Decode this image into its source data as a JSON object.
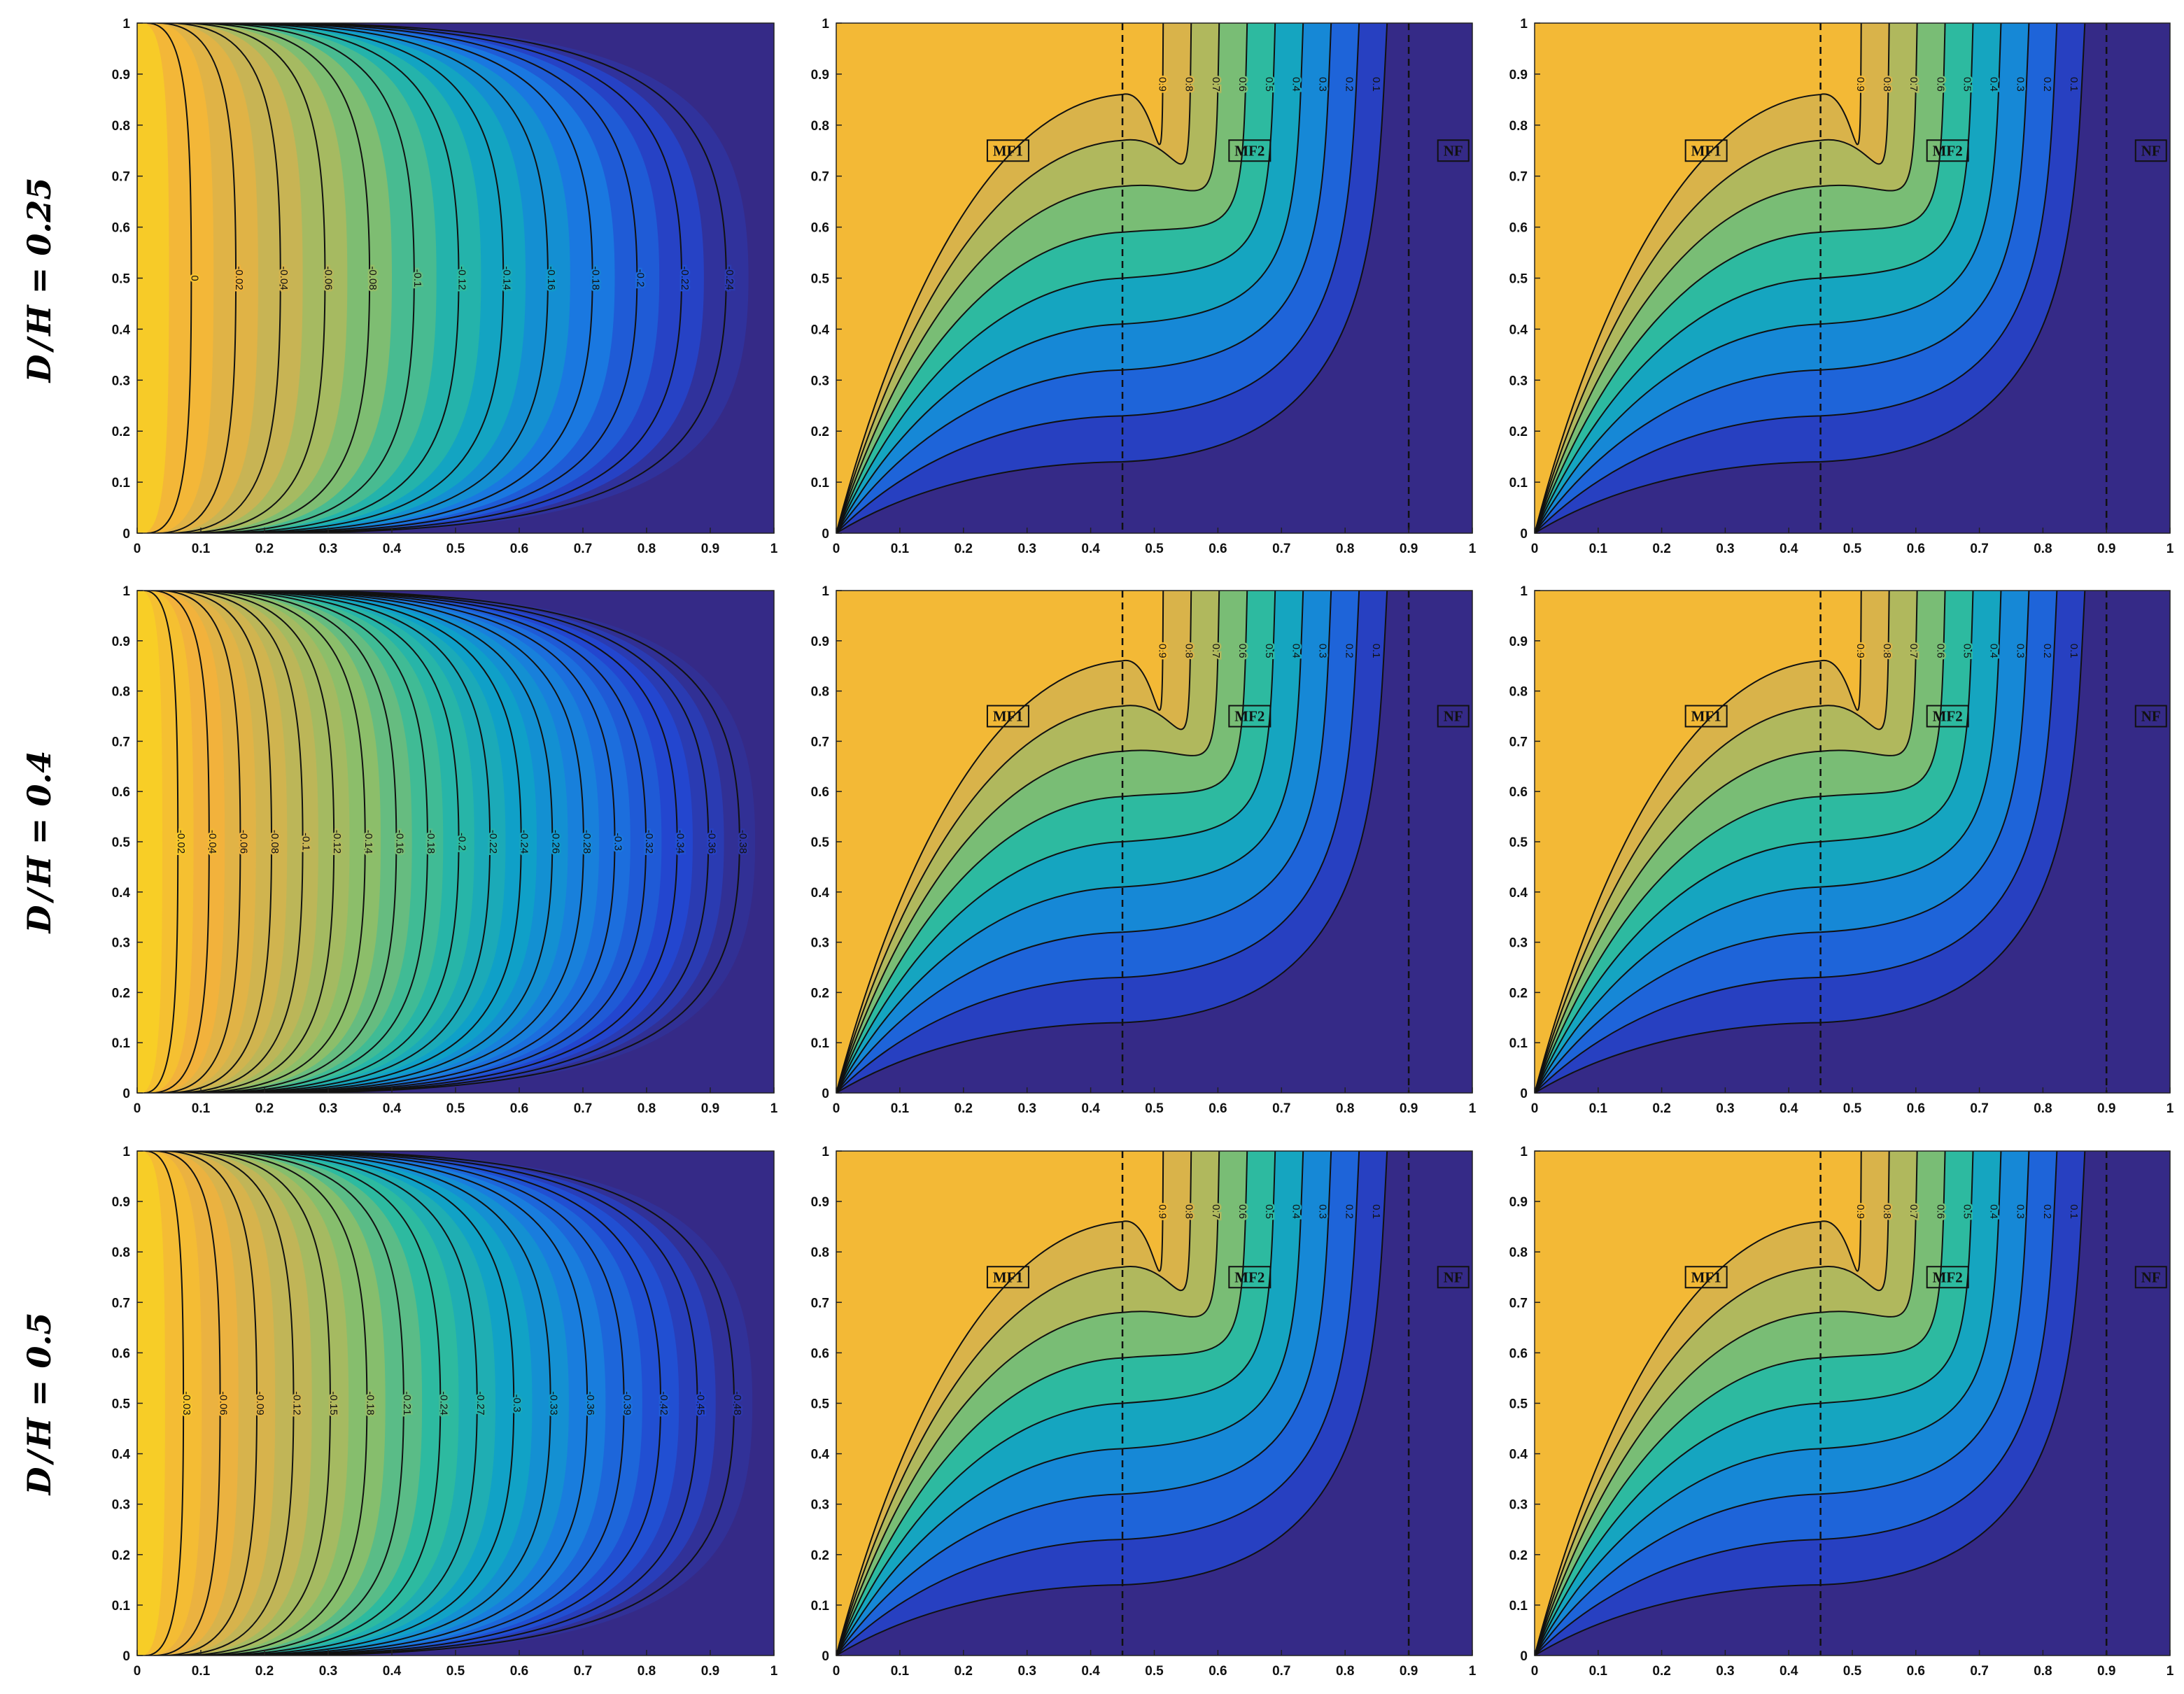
{
  "figure": {
    "row_labels": [
      {
        "symbol": "D",
        "rest": "H = 0.25"
      },
      {
        "symbol": "D",
        "rest": "H = 0.4"
      },
      {
        "symbol": "D",
        "rest": "H = 0.5"
      }
    ],
    "colormap": [
      "#352a87",
      "#2346cf",
      "#1a78e0",
      "#0fa0c8",
      "#2dbaa0",
      "#8cbe6a",
      "#c8b454",
      "#f2b23c",
      "#f9d520"
    ]
  },
  "chart_data": [
    {
      "type": "contour",
      "row": 0,
      "col": 0,
      "field": "stream",
      "xlim": [
        0,
        1
      ],
      "ylim": [
        0,
        1
      ],
      "x_ticks": [
        "0",
        "0.1",
        "0.2",
        "0.3",
        "0.4",
        "0.5",
        "0.6",
        "0.7",
        "0.8",
        "0.9",
        "1"
      ],
      "y_ticks": [
        "0",
        "0.1",
        "0.2",
        "0.3",
        "0.4",
        "0.5",
        "0.6",
        "0.7",
        "0.8",
        "0.9",
        "1"
      ],
      "extreme": -0.24,
      "levels": [
        "0",
        "-0.02",
        "-0.04",
        "-0.06",
        "-0.08",
        "-0.1",
        "-0.12",
        "-0.14",
        "-0.16",
        "-0.18",
        "-0.2",
        "-0.22",
        "-0.24"
      ]
    },
    {
      "type": "contour",
      "row": 0,
      "col": 1,
      "field": "temperature",
      "xlim": [
        0,
        1
      ],
      "ylim": [
        0,
        1
      ],
      "x_ticks": [
        "0",
        "0.1",
        "0.2",
        "0.3",
        "0.4",
        "0.5",
        "0.6",
        "0.7",
        "0.8",
        "0.9",
        "1"
      ],
      "y_ticks": [
        "0",
        "0.1",
        "0.2",
        "0.3",
        "0.4",
        "0.5",
        "0.6",
        "0.7",
        "0.8",
        "0.9",
        "1"
      ],
      "levels": [
        "0.9",
        "0.8",
        "0.7",
        "0.6",
        "0.5",
        "0.4",
        "0.3",
        "0.2",
        "0.1"
      ],
      "interfaces": [
        0.45,
        0.9
      ],
      "zones": [
        "MF1",
        "MF2",
        "NF"
      ]
    },
    {
      "type": "contour",
      "row": 0,
      "col": 2,
      "field": "temperature",
      "xlim": [
        0,
        1
      ],
      "ylim": [
        0,
        1
      ],
      "x_ticks": [
        "0",
        "0.1",
        "0.2",
        "0.3",
        "0.4",
        "0.5",
        "0.6",
        "0.7",
        "0.8",
        "0.9",
        "1"
      ],
      "y_ticks": [
        "0",
        "0.1",
        "0.2",
        "0.3",
        "0.4",
        "0.5",
        "0.6",
        "0.7",
        "0.8",
        "0.9",
        "1"
      ],
      "levels": [
        "0.9",
        "0.8",
        "0.7",
        "0.6",
        "0.5",
        "0.4",
        "0.3",
        "0.2",
        "0.1"
      ],
      "interfaces": [
        0.45,
        0.9
      ],
      "zones": [
        "MF1",
        "MF2",
        "NF"
      ]
    },
    {
      "type": "contour",
      "row": 1,
      "col": 0,
      "field": "stream",
      "xlim": [
        0,
        1
      ],
      "ylim": [
        0,
        1
      ],
      "x_ticks": [
        "0",
        "0.1",
        "0.2",
        "0.3",
        "0.4",
        "0.5",
        "0.6",
        "0.7",
        "0.8",
        "0.9",
        "1"
      ],
      "y_ticks": [
        "0",
        "0.1",
        "0.2",
        "0.3",
        "0.4",
        "0.5",
        "0.6",
        "0.7",
        "0.8",
        "0.9",
        "1"
      ],
      "extreme": -0.38,
      "levels": [
        "-0.02",
        "-0.04",
        "-0.06",
        "-0.08",
        "-0.1",
        "-0.12",
        "-0.14",
        "-0.16",
        "-0.18",
        "-0.2",
        "-0.22",
        "-0.24",
        "-0.26",
        "-0.28",
        "-0.3",
        "-0.32",
        "-0.34",
        "-0.36",
        "-0.38"
      ]
    },
    {
      "type": "contour",
      "row": 1,
      "col": 1,
      "field": "temperature",
      "xlim": [
        0,
        1
      ],
      "ylim": [
        0,
        1
      ],
      "x_ticks": [
        "0",
        "0.1",
        "0.2",
        "0.3",
        "0.4",
        "0.5",
        "0.6",
        "0.7",
        "0.8",
        "0.9",
        "1"
      ],
      "y_ticks": [
        "0",
        "0.1",
        "0.2",
        "0.3",
        "0.4",
        "0.5",
        "0.6",
        "0.7",
        "0.8",
        "0.9",
        "1"
      ],
      "levels": [
        "0.9",
        "0.8",
        "0.7",
        "0.6",
        "0.5",
        "0.4",
        "0.3",
        "0.2",
        "0.1"
      ],
      "interfaces": [
        0.45,
        0.9
      ],
      "zones": [
        "MF1",
        "MF2",
        "NF"
      ]
    },
    {
      "type": "contour",
      "row": 1,
      "col": 2,
      "field": "temperature",
      "xlim": [
        0,
        1
      ],
      "ylim": [
        0,
        1
      ],
      "x_ticks": [
        "0",
        "0.1",
        "0.2",
        "0.3",
        "0.4",
        "0.5",
        "0.6",
        "0.7",
        "0.8",
        "0.9",
        "1"
      ],
      "y_ticks": [
        "0",
        "0.1",
        "0.2",
        "0.3",
        "0.4",
        "0.5",
        "0.6",
        "0.7",
        "0.8",
        "0.9",
        "1"
      ],
      "levels": [
        "0.9",
        "0.8",
        "0.7",
        "0.6",
        "0.5",
        "0.4",
        "0.3",
        "0.2",
        "0.1"
      ],
      "interfaces": [
        0.45,
        0.9
      ],
      "zones": [
        "MF1",
        "MF2",
        "NF"
      ]
    },
    {
      "type": "contour",
      "row": 2,
      "col": 0,
      "field": "stream",
      "xlim": [
        0,
        1
      ],
      "ylim": [
        0,
        1
      ],
      "x_ticks": [
        "0",
        "0.1",
        "0.2",
        "0.3",
        "0.4",
        "0.5",
        "0.6",
        "0.7",
        "0.8",
        "0.9",
        "1"
      ],
      "y_ticks": [
        "0",
        "0.1",
        "0.2",
        "0.3",
        "0.4",
        "0.5",
        "0.6",
        "0.7",
        "0.8",
        "0.9",
        "1"
      ],
      "extreme": -0.48,
      "levels": [
        "-0.03",
        "-0.06",
        "-0.09",
        "-0.12",
        "-0.15",
        "-0.18",
        "-0.21",
        "-0.24",
        "-0.27",
        "-0.3",
        "-0.33",
        "-0.36",
        "-0.39",
        "-0.42",
        "-0.45",
        "-0.48"
      ]
    },
    {
      "type": "contour",
      "row": 2,
      "col": 1,
      "field": "temperature",
      "xlim": [
        0,
        1
      ],
      "ylim": [
        0,
        1
      ],
      "x_ticks": [
        "0",
        "0.1",
        "0.2",
        "0.3",
        "0.4",
        "0.5",
        "0.6",
        "0.7",
        "0.8",
        "0.9",
        "1"
      ],
      "y_ticks": [
        "0",
        "0.1",
        "0.2",
        "0.3",
        "0.4",
        "0.5",
        "0.6",
        "0.7",
        "0.8",
        "0.9",
        "1"
      ],
      "levels": [
        "0.9",
        "0.8",
        "0.7",
        "0.6",
        "0.5",
        "0.4",
        "0.3",
        "0.2",
        "0.1"
      ],
      "interfaces": [
        0.45,
        0.9
      ],
      "zones": [
        "MF1",
        "MF2",
        "NF"
      ]
    },
    {
      "type": "contour",
      "row": 2,
      "col": 2,
      "field": "temperature",
      "xlim": [
        0,
        1
      ],
      "ylim": [
        0,
        1
      ],
      "x_ticks": [
        "0",
        "0.1",
        "0.2",
        "0.3",
        "0.4",
        "0.5",
        "0.6",
        "0.7",
        "0.8",
        "0.9",
        "1"
      ],
      "y_ticks": [
        "0",
        "0.1",
        "0.2",
        "0.3",
        "0.4",
        "0.5",
        "0.6",
        "0.7",
        "0.8",
        "0.9",
        "1"
      ],
      "levels": [
        "0.9",
        "0.8",
        "0.7",
        "0.6",
        "0.5",
        "0.4",
        "0.3",
        "0.2",
        "0.1"
      ],
      "interfaces": [
        0.45,
        0.9
      ],
      "zones": [
        "MF1",
        "MF2",
        "NF"
      ]
    }
  ]
}
